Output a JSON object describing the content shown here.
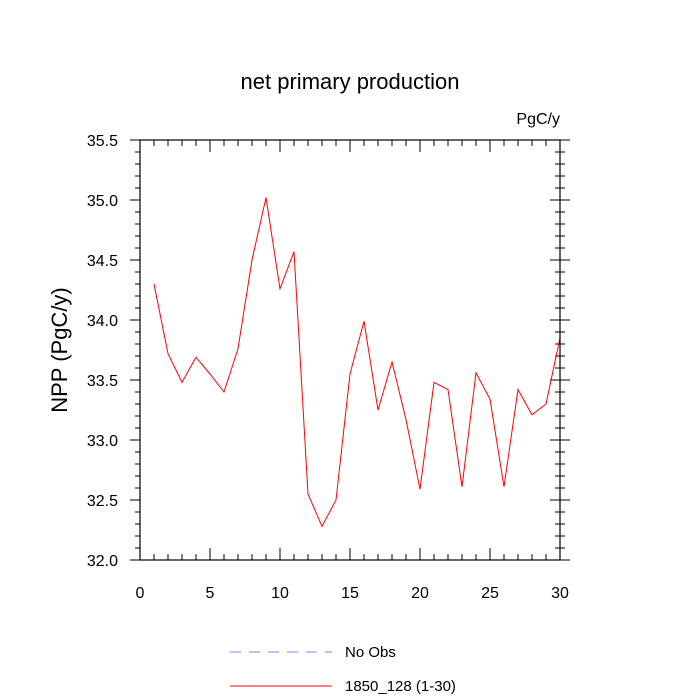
{
  "chart_data": {
    "type": "line",
    "title": "net primary production",
    "units_label": "PgC/y",
    "ylabel": "NPP  (PgC/y)",
    "xlabel": "",
    "xlim": [
      0,
      30
    ],
    "ylim": [
      32.0,
      35.5
    ],
    "x_ticks": [
      0,
      5,
      10,
      15,
      20,
      25,
      30
    ],
    "x_tick_labels": [
      "0",
      "5",
      "10",
      "15",
      "20",
      "25",
      "30"
    ],
    "y_ticks": [
      32.0,
      32.5,
      33.0,
      33.5,
      34.0,
      34.5,
      35.0,
      35.5
    ],
    "y_tick_labels": [
      "32.0",
      "32.5",
      "33.0",
      "33.5",
      "34.0",
      "34.5",
      "35.0",
      "35.5"
    ],
    "grid": false,
    "legend_position": "bottom-center",
    "series": [
      {
        "name": "1850_128 (1-30)",
        "color": "#ff0000",
        "style": "solid",
        "x": [
          1,
          2,
          3,
          4,
          5,
          6,
          7,
          8,
          9,
          10,
          11,
          12,
          13,
          14,
          15,
          16,
          17,
          18,
          19,
          20,
          21,
          22,
          23,
          24,
          25,
          26,
          27,
          28,
          29,
          30
        ],
        "y": [
          34.3,
          33.72,
          33.48,
          33.69,
          33.55,
          33.4,
          33.76,
          34.5,
          35.02,
          34.26,
          34.57,
          32.55,
          32.28,
          32.5,
          33.55,
          33.99,
          33.25,
          33.65,
          33.17,
          32.59,
          33.48,
          33.42,
          32.61,
          33.56,
          33.34,
          32.61,
          33.42,
          33.21,
          33.3,
          33.85
        ]
      }
    ],
    "legend": [
      {
        "label": "No Obs",
        "color": "#8080ff",
        "style": "dashed"
      },
      {
        "label": "1850_128 (1-30)",
        "color": "#ff0000",
        "style": "solid"
      }
    ]
  }
}
